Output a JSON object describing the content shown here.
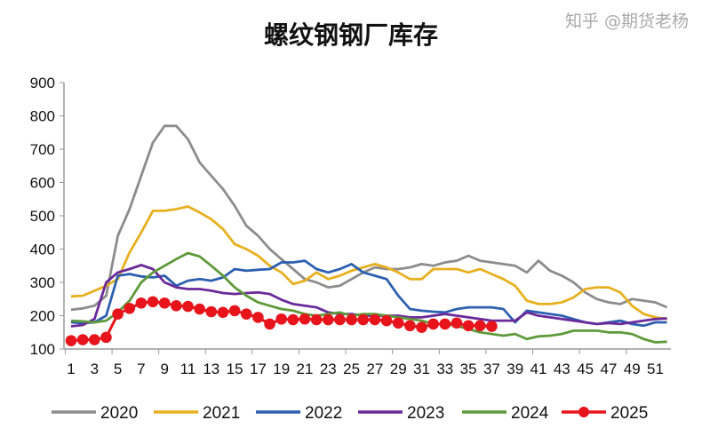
{
  "chart_data": {
    "type": "line",
    "title": "螺纹钢钢厂库存",
    "xlabel": "",
    "ylabel": "",
    "ylim": [
      100,
      900
    ],
    "yticks": [
      100,
      200,
      300,
      400,
      500,
      600,
      700,
      800,
      900
    ],
    "xticks": [
      1,
      3,
      5,
      7,
      9,
      11,
      13,
      15,
      17,
      19,
      21,
      23,
      25,
      27,
      29,
      31,
      33,
      35,
      37,
      39,
      41,
      43,
      45,
      47,
      49,
      51
    ],
    "grid": false,
    "legend": "bottom",
    "series": [
      {
        "name": "2020",
        "color": "#8c8c8c",
        "marker": "none",
        "values": [
          218,
          222,
          230,
          260,
          440,
          520,
          620,
          720,
          770,
          770,
          730,
          660,
          620,
          580,
          530,
          470,
          440,
          400,
          370,
          340,
          310,
          300,
          285,
          290,
          310,
          330,
          345,
          340,
          340,
          345,
          355,
          350,
          360,
          365,
          380,
          365,
          360,
          355,
          350,
          330,
          365,
          335,
          320,
          300,
          270,
          250,
          240,
          235,
          250,
          245,
          240,
          225
        ]
      },
      {
        "name": "2021",
        "color": "#e8b020",
        "marker": "none",
        "values": [
          258,
          260,
          275,
          290,
          310,
          390,
          450,
          515,
          515,
          520,
          528,
          510,
          490,
          460,
          415,
          400,
          380,
          350,
          330,
          295,
          305,
          330,
          310,
          320,
          335,
          345,
          355,
          345,
          330,
          310,
          310,
          340,
          340,
          340,
          330,
          340,
          325,
          310,
          290,
          245,
          235,
          235,
          240,
          255,
          280,
          285,
          285,
          270,
          230,
          205,
          195,
          190
        ]
      },
      {
        "name": "2022",
        "color": "#2d5fb0",
        "marker": "none",
        "values": [
          180,
          178,
          180,
          200,
          320,
          325,
          318,
          315,
          320,
          290,
          305,
          310,
          305,
          315,
          340,
          335,
          338,
          340,
          360,
          360,
          365,
          340,
          330,
          340,
          355,
          330,
          320,
          310,
          260,
          220,
          215,
          212,
          210,
          220,
          225,
          225,
          225,
          220,
          180,
          215,
          210,
          205,
          200,
          190,
          180,
          175,
          180,
          185,
          175,
          170,
          180,
          180
        ]
      },
      {
        "name": "2023",
        "color": "#6a2a9a",
        "marker": "none",
        "values": [
          168,
          172,
          190,
          300,
          330,
          340,
          352,
          340,
          300,
          285,
          280,
          280,
          275,
          268,
          265,
          268,
          270,
          265,
          248,
          235,
          230,
          225,
          210,
          205,
          205,
          200,
          200,
          200,
          200,
          195,
          195,
          200,
          205,
          200,
          195,
          190,
          185,
          185,
          185,
          210,
          200,
          195,
          190,
          185,
          180,
          175,
          178,
          175,
          180,
          185,
          190,
          192
        ]
      },
      {
        "name": "2024",
        "color": "#5e9a3a",
        "marker": "none",
        "values": [
          185,
          183,
          180,
          185,
          210,
          245,
          300,
          330,
          350,
          370,
          388,
          378,
          350,
          320,
          285,
          260,
          240,
          230,
          220,
          215,
          205,
          200,
          205,
          210,
          200,
          205,
          205,
          200,
          195,
          190,
          185,
          175,
          175,
          170,
          160,
          150,
          145,
          140,
          145,
          130,
          138,
          140,
          145,
          155,
          155,
          155,
          150,
          150,
          145,
          130,
          120,
          122
        ]
      },
      {
        "name": "2025",
        "color": "#e8141c",
        "marker": "circle",
        "values": [
          125,
          128,
          128,
          135,
          205,
          222,
          238,
          242,
          238,
          230,
          228,
          220,
          212,
          210,
          215,
          205,
          195,
          175,
          190,
          188,
          190,
          188,
          188,
          188,
          188,
          188,
          188,
          185,
          178,
          170,
          165,
          175,
          175,
          178,
          170,
          170,
          168
        ]
      }
    ]
  },
  "watermark": "知乎 @期货老杨"
}
